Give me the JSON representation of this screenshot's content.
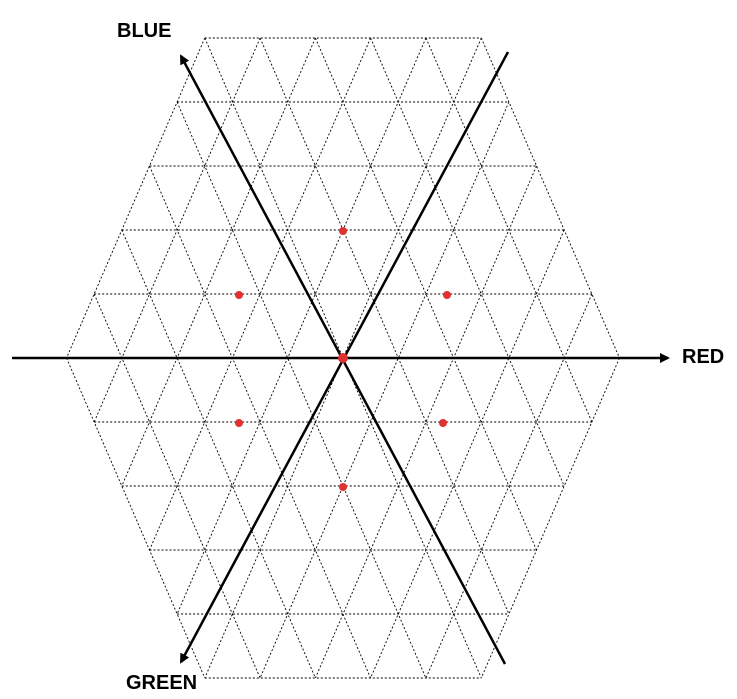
{
  "diagram": {
    "labels": {
      "blue": "BLUE",
      "red": "RED",
      "green": "GREEN"
    },
    "colors": {
      "axis": "#000000",
      "grid": "#000000",
      "point": "#e03131",
      "background": "#ffffff"
    },
    "grid": {
      "type": "triangular-hexagon",
      "rings": 5,
      "line_style": "dotted"
    },
    "points": [
      {
        "ring": 0,
        "direction": "center"
      },
      {
        "ring": 2,
        "direction": "up"
      },
      {
        "ring": 2,
        "direction": "down"
      },
      {
        "ring": 2,
        "direction": "upper-left"
      },
      {
        "ring": 2,
        "direction": "upper-right"
      },
      {
        "ring": 2,
        "direction": "lower-left"
      },
      {
        "ring": 2,
        "direction": "lower-right"
      }
    ]
  }
}
